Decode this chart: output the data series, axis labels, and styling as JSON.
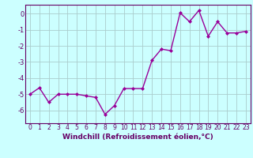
{
  "x": [
    0,
    1,
    2,
    3,
    4,
    5,
    6,
    7,
    8,
    9,
    10,
    11,
    12,
    13,
    14,
    15,
    16,
    17,
    18,
    19,
    20,
    21,
    22,
    23
  ],
  "y": [
    -5.0,
    -4.6,
    -5.5,
    -5.0,
    -5.0,
    -5.0,
    -5.1,
    -5.2,
    -6.25,
    -5.7,
    -4.65,
    -4.65,
    -4.65,
    -2.9,
    -2.2,
    -2.3,
    0.05,
    -0.5,
    0.2,
    -1.4,
    -0.5,
    -1.2,
    -1.2,
    -1.1
  ],
  "line_color": "#990099",
  "marker": "D",
  "markersize": 2,
  "linewidth": 1.0,
  "bg_color": "#ccffff",
  "grid_color": "#aacccc",
  "axis_color": "#660066",
  "xlabel": "Windchill (Refroidissement éolien,°C)",
  "xlabel_color": "#660066",
  "ytick_labels": [
    "0",
    "-1",
    "-2",
    "-3",
    "-4",
    "-5",
    "-6"
  ],
  "ytick_vals": [
    0,
    -1,
    -2,
    -3,
    -4,
    -5,
    -6
  ],
  "ylim": [
    -6.8,
    0.55
  ],
  "xlim": [
    -0.5,
    23.5
  ],
  "xtick_vals": [
    0,
    1,
    2,
    3,
    4,
    5,
    6,
    7,
    8,
    9,
    10,
    11,
    12,
    13,
    14,
    15,
    16,
    17,
    18,
    19,
    20,
    21,
    22,
    23
  ],
  "tick_fontsize": 5.5,
  "xlabel_fontsize": 6.5
}
